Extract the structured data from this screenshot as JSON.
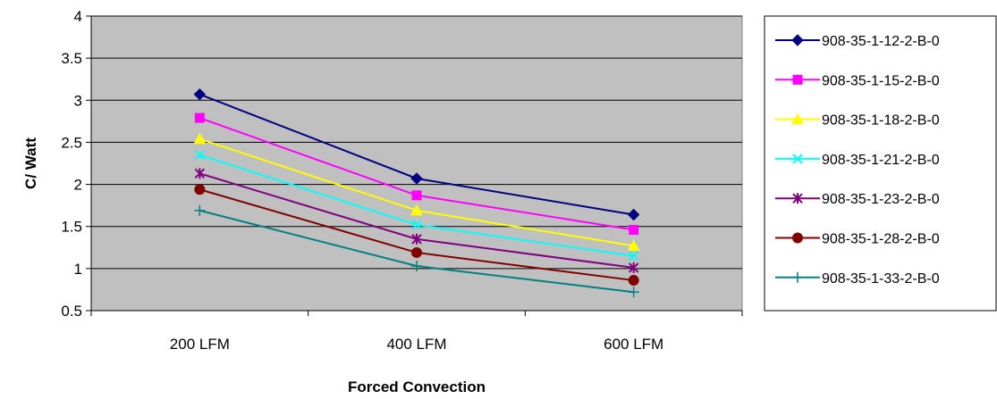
{
  "chart_data": {
    "type": "line",
    "categories": [
      "200 LFM",
      "400 LFM",
      "600 LFM"
    ],
    "xlabel": "Forced Convection",
    "ylabel": "C/ Watt",
    "ylim": [
      0.5,
      4
    ],
    "yticks": [
      "0.5",
      "1",
      "1.5",
      "2",
      "2.5",
      "3",
      "3.5",
      "4"
    ],
    "grid": "horizontal",
    "legend": "right",
    "plot_background": "#c0c0c0",
    "series": [
      {
        "name": "908-35-1-12-2-B-0",
        "values": [
          3.07,
          2.07,
          1.64
        ],
        "color": "#000080",
        "marker": "diamond"
      },
      {
        "name": "908-35-1-15-2-B-0",
        "values": [
          2.79,
          1.87,
          1.46
        ],
        "color": "#ff00ff",
        "marker": "square"
      },
      {
        "name": "908-35-1-18-2-B-0",
        "values": [
          2.54,
          1.69,
          1.27
        ],
        "color": "#ffff00",
        "marker": "triangle"
      },
      {
        "name": "908-35-1-21-2-B-0",
        "values": [
          2.35,
          1.52,
          1.15
        ],
        "color": "#00ffff",
        "marker": "x"
      },
      {
        "name": "908-35-1-23-2-B-0",
        "values": [
          2.13,
          1.35,
          1.01
        ],
        "color": "#800080",
        "marker": "star"
      },
      {
        "name": "908-35-1-28-2-B-0",
        "values": [
          1.94,
          1.19,
          0.86
        ],
        "color": "#800000",
        "marker": "circle"
      },
      {
        "name": "908-35-1-33-2-B-0",
        "values": [
          1.69,
          1.03,
          0.72
        ],
        "color": "#008080",
        "marker": "plus"
      }
    ]
  }
}
